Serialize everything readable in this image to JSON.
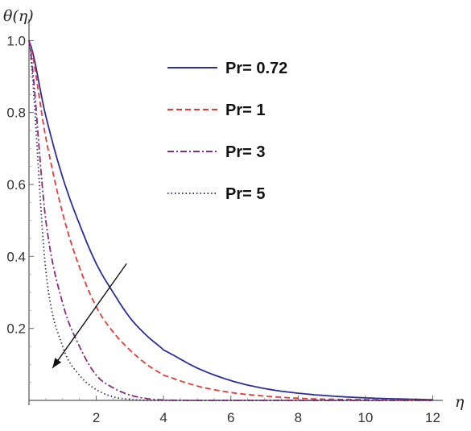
{
  "chart_data": {
    "type": "line",
    "xlabel": "η",
    "ylabel": "θ(η)",
    "xlim": [
      0,
      12.3
    ],
    "ylim": [
      0,
      1.05
    ],
    "x_ticks": [
      2,
      4,
      6,
      8,
      10,
      12
    ],
    "y_ticks": [
      0.2,
      0.4,
      0.6,
      0.8,
      1.0
    ],
    "x_tick_labels": [
      "2",
      "4",
      "6",
      "8",
      "10",
      "12"
    ],
    "y_tick_labels": [
      "0.2",
      "0.4",
      "0.6",
      "0.8",
      "1.0"
    ],
    "grid": false,
    "legend_position": "top-right",
    "x": [
      0,
      0.5,
      1,
      1.5,
      2,
      2.5,
      3,
      3.5,
      4,
      5,
      6,
      7,
      8,
      9,
      10,
      11,
      12
    ],
    "series": [
      {
        "name": "Pr= 0.72",
        "color": "#2b2d99",
        "dash": "solid",
        "values": [
          1.0,
          0.79,
          0.62,
          0.49,
          0.38,
          0.3,
          0.23,
          0.18,
          0.14,
          0.09,
          0.055,
          0.033,
          0.02,
          0.012,
          0.007,
          0.004,
          0.002
        ]
      },
      {
        "name": "Pr= 1",
        "color": "#e03c3c",
        "dash": "dashed",
        "values": [
          1.0,
          0.73,
          0.52,
          0.37,
          0.26,
          0.19,
          0.14,
          0.1,
          0.07,
          0.04,
          0.022,
          0.012,
          0.006,
          0.003,
          0.002,
          0.001,
          0.0
        ]
      },
      {
        "name": "Pr= 3",
        "color": "#8a2a7a",
        "dash": "dashdot",
        "values": [
          1.0,
          0.5,
          0.27,
          0.15,
          0.07,
          0.035,
          0.015,
          0.005,
          0.001,
          0.0,
          0.0,
          0.0,
          0.0,
          0.0,
          0.0,
          0.0,
          0.0
        ]
      },
      {
        "name": "Pr= 5",
        "color": "#3a3560",
        "dash": "dotted",
        "values": [
          1.0,
          0.36,
          0.15,
          0.07,
          0.03,
          0.01,
          0.003,
          0.0,
          0.0,
          0.0,
          0.0,
          0.0,
          0.0,
          0.0,
          0.0,
          0.0,
          0.0
        ]
      }
    ],
    "annotation": {
      "kind": "arrow",
      "meaning": "increasing Pr",
      "from": {
        "x": 2.9,
        "y": 0.38
      },
      "to": {
        "x": 0.7,
        "y": 0.09
      }
    }
  }
}
